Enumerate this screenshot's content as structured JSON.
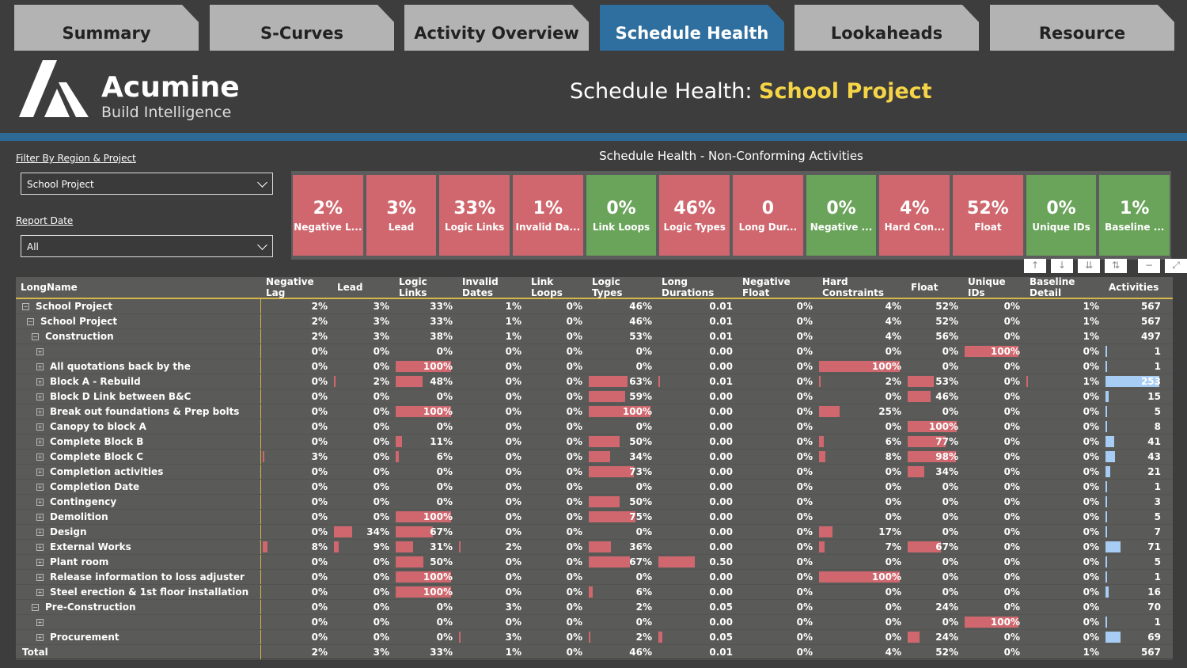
{
  "tabs": [
    "Summary",
    "S-Curves",
    "Activity Overview",
    "Schedule Health",
    "Lookaheads",
    "Resource"
  ],
  "active_tab": 3,
  "logo": {
    "name": "Acumine",
    "tagline": "Build Intelligence"
  },
  "title": {
    "prefix": "Schedule Health:",
    "project": "School Project"
  },
  "filters": {
    "region_label": "Filter By Region & Project",
    "region_value": "School Project",
    "date_label": "Report Date",
    "date_value": "All"
  },
  "kpi_title": "Schedule Health - Non-Conforming Activities",
  "colors": {
    "red": "#d0676e",
    "green": "#6aa35a",
    "active_tab": "#2f6f9f",
    "accent": "#f5d547"
  },
  "kpis": [
    {
      "value": "2%",
      "label": "Negative L...",
      "status": "red"
    },
    {
      "value": "3%",
      "label": "Lead",
      "status": "red"
    },
    {
      "value": "33%",
      "label": "Logic Links",
      "status": "red"
    },
    {
      "value": "1%",
      "label": "Invalid Da...",
      "status": "red"
    },
    {
      "value": "0%",
      "label": "Link Loops",
      "status": "green"
    },
    {
      "value": "46%",
      "label": "Logic Types",
      "status": "red"
    },
    {
      "value": "0",
      "label": "Long Dur...",
      "status": "red"
    },
    {
      "value": "0%",
      "label": "Negative ...",
      "status": "green"
    },
    {
      "value": "4%",
      "label": "Hard Con...",
      "status": "red"
    },
    {
      "value": "52%",
      "label": "Float",
      "status": "red"
    },
    {
      "value": "0%",
      "label": "Unique IDs",
      "status": "green"
    },
    {
      "value": "1%",
      "label": "Baseline ...",
      "status": "green"
    }
  ],
  "toolbar_icons": [
    "arrow-up-icon",
    "arrow-down-icon",
    "expand-all-icon",
    "expand-level-icon",
    "filter-icon",
    "focus-mode-icon"
  ],
  "table": {
    "columns": [
      "LongName",
      "Negative Lag",
      "Lead",
      "Logic Links",
      "Invalid Dates",
      "Link Loops",
      "Logic Types",
      "Long Durations",
      "Negative Float",
      "Hard Constraints",
      "Float",
      "Unique IDs",
      "Baseline Detail",
      "Activities"
    ],
    "sorted_column": "Negative Float",
    "rows": [
      {
        "level": 0,
        "toggle": "minus",
        "name": "School Project",
        "values": [
          "2%",
          "3%",
          "33%",
          "1%",
          "0%",
          "46%",
          "0.01",
          "0%",
          "4%",
          "52%",
          "0%",
          "1%",
          "567"
        ]
      },
      {
        "level": 1,
        "toggle": "minus",
        "name": "School Project",
        "values": [
          "2%",
          "3%",
          "33%",
          "1%",
          "0%",
          "46%",
          "0.01",
          "0%",
          "4%",
          "52%",
          "0%",
          "1%",
          "567"
        ]
      },
      {
        "level": 2,
        "toggle": "minus",
        "name": "Construction",
        "values": [
          "2%",
          "3%",
          "38%",
          "1%",
          "0%",
          "53%",
          "0.01",
          "0%",
          "4%",
          "56%",
          "0%",
          "1%",
          "497"
        ]
      },
      {
        "level": 3,
        "toggle": "plus",
        "name": "",
        "values": [
          "0%",
          "0%",
          "0%",
          "0%",
          "0%",
          "0%",
          "0.00",
          "0%",
          "0%",
          "0%",
          "100%",
          "0%",
          "1"
        ]
      },
      {
        "level": 3,
        "toggle": "plus",
        "name": "All quotations back by the",
        "values": [
          "0%",
          "0%",
          "100%",
          "0%",
          "0%",
          "0%",
          "0.00",
          "0%",
          "100%",
          "0%",
          "0%",
          "0%",
          "1"
        ]
      },
      {
        "level": 3,
        "toggle": "plus",
        "name": "Block A - Rebuild",
        "values": [
          "0%",
          "2%",
          "48%",
          "0%",
          "0%",
          "63%",
          "0.01",
          "0%",
          "2%",
          "53%",
          "0%",
          "1%",
          "253"
        ]
      },
      {
        "level": 3,
        "toggle": "plus",
        "name": "Block D Link between B&C",
        "values": [
          "0%",
          "0%",
          "0%",
          "0%",
          "0%",
          "59%",
          "0.00",
          "0%",
          "0%",
          "46%",
          "0%",
          "0%",
          "15"
        ]
      },
      {
        "level": 3,
        "toggle": "plus",
        "name": "Break out foundations & Prep bolts",
        "values": [
          "0%",
          "0%",
          "100%",
          "0%",
          "0%",
          "100%",
          "0.00",
          "0%",
          "25%",
          "0%",
          "0%",
          "0%",
          "5"
        ]
      },
      {
        "level": 3,
        "toggle": "plus",
        "name": "Canopy to block A",
        "values": [
          "0%",
          "0%",
          "0%",
          "0%",
          "0%",
          "0%",
          "0.00",
          "0%",
          "0%",
          "100%",
          "0%",
          "0%",
          "8"
        ]
      },
      {
        "level": 3,
        "toggle": "plus",
        "name": "Complete Block B",
        "values": [
          "0%",
          "0%",
          "11%",
          "0%",
          "0%",
          "50%",
          "0.00",
          "0%",
          "6%",
          "77%",
          "0%",
          "0%",
          "41"
        ]
      },
      {
        "level": 3,
        "toggle": "plus",
        "name": "Complete Block C",
        "values": [
          "3%",
          "0%",
          "6%",
          "0%",
          "0%",
          "34%",
          "0.00",
          "0%",
          "8%",
          "98%",
          "0%",
          "0%",
          "43"
        ]
      },
      {
        "level": 3,
        "toggle": "plus",
        "name": "Completion activities",
        "values": [
          "0%",
          "0%",
          "0%",
          "0%",
          "0%",
          "73%",
          "0.00",
          "0%",
          "0%",
          "34%",
          "0%",
          "0%",
          "21"
        ]
      },
      {
        "level": 3,
        "toggle": "plus",
        "name": "Completion Date",
        "values": [
          "0%",
          "0%",
          "0%",
          "0%",
          "0%",
          "0%",
          "0.00",
          "0%",
          "0%",
          "0%",
          "0%",
          "0%",
          "1"
        ]
      },
      {
        "level": 3,
        "toggle": "plus",
        "name": "Contingency",
        "values": [
          "0%",
          "0%",
          "0%",
          "0%",
          "0%",
          "50%",
          "0.00",
          "0%",
          "0%",
          "0%",
          "0%",
          "0%",
          "3"
        ]
      },
      {
        "level": 3,
        "toggle": "plus",
        "name": "Demolition",
        "values": [
          "0%",
          "0%",
          "100%",
          "0%",
          "0%",
          "75%",
          "0.00",
          "0%",
          "0%",
          "0%",
          "0%",
          "0%",
          "5"
        ]
      },
      {
        "level": 3,
        "toggle": "plus",
        "name": "Design",
        "values": [
          "0%",
          "34%",
          "67%",
          "0%",
          "0%",
          "0%",
          "0.00",
          "0%",
          "17%",
          "0%",
          "0%",
          "0%",
          "7"
        ]
      },
      {
        "level": 3,
        "toggle": "plus",
        "name": "External Works",
        "values": [
          "8%",
          "9%",
          "31%",
          "2%",
          "0%",
          "36%",
          "0.00",
          "0%",
          "7%",
          "67%",
          "0%",
          "0%",
          "71"
        ]
      },
      {
        "level": 3,
        "toggle": "plus",
        "name": "Plant room",
        "values": [
          "0%",
          "0%",
          "50%",
          "0%",
          "0%",
          "67%",
          "0.50",
          "0%",
          "0%",
          "0%",
          "0%",
          "0%",
          "5"
        ]
      },
      {
        "level": 3,
        "toggle": "plus",
        "name": "Release information to loss adjuster",
        "values": [
          "0%",
          "0%",
          "100%",
          "0%",
          "0%",
          "0%",
          "0.00",
          "0%",
          "100%",
          "0%",
          "0%",
          "0%",
          "1"
        ]
      },
      {
        "level": 3,
        "toggle": "plus",
        "name": "Steel erection & 1st floor installation",
        "values": [
          "0%",
          "0%",
          "100%",
          "0%",
          "0%",
          "6%",
          "0.00",
          "0%",
          "0%",
          "0%",
          "0%",
          "0%",
          "16"
        ]
      },
      {
        "level": 2,
        "toggle": "minus",
        "name": "Pre-Construction",
        "values": [
          "0%",
          "0%",
          "0%",
          "3%",
          "0%",
          "2%",
          "0.05",
          "0%",
          "0%",
          "24%",
          "0%",
          "0%",
          "70"
        ]
      },
      {
        "level": 3,
        "toggle": "plus",
        "name": "",
        "values": [
          "0%",
          "0%",
          "0%",
          "0%",
          "0%",
          "0%",
          "0.00",
          "0%",
          "0%",
          "0%",
          "100%",
          "0%",
          "1"
        ]
      },
      {
        "level": 3,
        "toggle": "plus",
        "name": "Procurement",
        "values": [
          "0%",
          "0%",
          "0%",
          "3%",
          "0%",
          "2%",
          "0.05",
          "0%",
          "0%",
          "24%",
          "0%",
          "0%",
          "69"
        ]
      },
      {
        "level": 0,
        "toggle": "",
        "name": "Total",
        "values": [
          "2%",
          "3%",
          "33%",
          "1%",
          "0%",
          "46%",
          "0.01",
          "0%",
          "4%",
          "52%",
          "0%",
          "1%",
          "567"
        ]
      }
    ]
  }
}
